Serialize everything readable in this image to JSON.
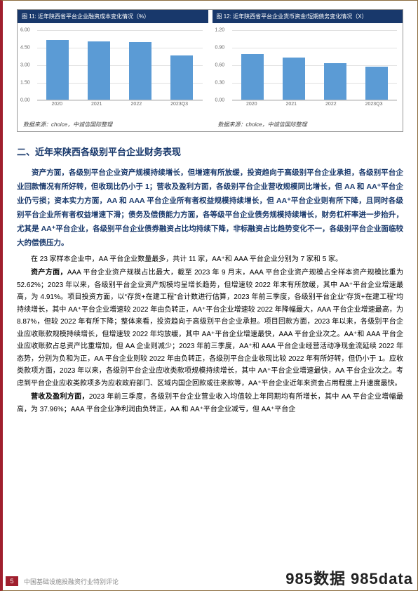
{
  "chart_left": {
    "title": "图 11: 近年陕西省平台企业融资成本变化情况（%）",
    "type": "bar",
    "categories": [
      "2020",
      "2021",
      "2022",
      "2023Q3"
    ],
    "values": [
      5.1,
      5.0,
      4.9,
      3.8
    ],
    "bar_color": "#5b9bd5",
    "ymax": 6.0,
    "ystep": 1.5,
    "yticks": [
      "0.00",
      "1.50",
      "3.00",
      "4.50",
      "6.00"
    ],
    "grid_color": "#e0e0e0",
    "bg_color": "#ffffff",
    "tick_fontsize": 7,
    "source": "数据来源：choice，中诚信国际整理"
  },
  "chart_right": {
    "title": "图 12: 近年陕西省平台企业货币资金/短期债务变化情况（X）",
    "type": "bar",
    "categories": [
      "2020",
      "2021",
      "2022",
      "2023Q3"
    ],
    "values": [
      0.78,
      0.72,
      0.63,
      0.56
    ],
    "bar_color": "#5b9bd5",
    "ymax": 1.2,
    "ystep": 0.3,
    "yticks": [
      "0.00",
      "0.30",
      "0.60",
      "0.90",
      "1.20"
    ],
    "grid_color": "#e0e0e0",
    "bg_color": "#ffffff",
    "tick_fontsize": 7,
    "source": "数据来源：choice，中诚信国际整理"
  },
  "section_title": "二、近年来陕西各级别平台企业财务表现",
  "summary": {
    "p": "资产方面，各级别平台企业资产规模持续增长，但增速有所放缓，投资趋向于高级别平台企业承担，各级别平台企业回款情况有所好转，但收现比仍小于 1；营收及盈利方面，各级别平台企业营收规模同比增长，但 AA 和 AA⁺平台企业仍亏损；资本实力方面，AA 和 AAA 平台企业所有者权益规模持续增长，但 AA⁺平台企业则有所下降，且同时各级别平台企业所有者权益增速下滑；债务及偿债能力方面，各等级平台企业债务规模持续增长，财务杠杆率进一步抬升，尤其是 AA⁺平台企业，各级别平台企业债券融资占比均持续下降，非标融资占比趋势变化不一，各级别平台企业面临较大的偿债压力。"
  },
  "body": {
    "p1": "在 23 家样本企业中，AA 平台企业数量最多，共计 11 家，AA⁺和 AAA 平台企业分别为 7 家和 5 家。",
    "p2_lead": "资产方面，",
    "p2": "AAA 平台企业资产规模占比最大，截至 2023 年 9 月末，AAA 平台企业资产规模占全样本资产规模比重为 52.62%；2023 年以来，各级别平台企业资产规模均呈增长趋势，但增速较 2022 年末有所放缓，其中 AA⁺平台企业增速最高，为 4.91%。项目投资方面，以“存货+在建工程”合计数进行估算，2023 年前三季度，各级别平台企业“存货+在建工程”均持续增长，其中 AA⁺平台企业增速较 2022 年由负转正，AA⁺平台企业增速较 2022 年降幅最大，AAA 平台企业增速最高，为 8.87%，但较 2022 年有所下降；整体来看，投资趋向于高级别平台企业承担。项目回款方面，2023 年以来，各级别平台企业应收账款规模持续增长，但增速较 2022 年均放缓，其中 AA⁺平台企业增速最快，AAA 平台企业次之。AA⁺和 AAA 平台企业应收账款占总资产比重增加，但 AA 企业则减少；2023 年前三季度，AA⁺和 AAA 平台企业经营活动净现金流延续 2022 年态势，分别为负和为正，AA 平台企业则较 2022 年由负转正，各级别平台企业收现比较 2022 年有所好转，但仍小于 1。应收类款项方面，2023 年以来，各级别平台企业应收类款项规模持续增长，其中 AA⁺平台企业增速最快，AA 平台企业次之。考虑到平台企业应收类款项多为应收政府部门、区域内国企回款或往来款等，AA⁺平台企业近年来资金占用程度上升速度最快。",
    "p3_lead": "营收及盈利方面，",
    "p3": "2023 年前三季度，各级别平台企业营业收入均值较上年同期均有所增长，其中 AA 平台企业增幅最高，为 37.96%；AAA 平台企业净利润由负转正，AA 和 AA⁺平台企业减亏，但 AA⁺平台企"
  },
  "footer": {
    "page": "5",
    "text": "中国基础设施投融资行业特别评论",
    "watermark": "985数据 985data"
  }
}
